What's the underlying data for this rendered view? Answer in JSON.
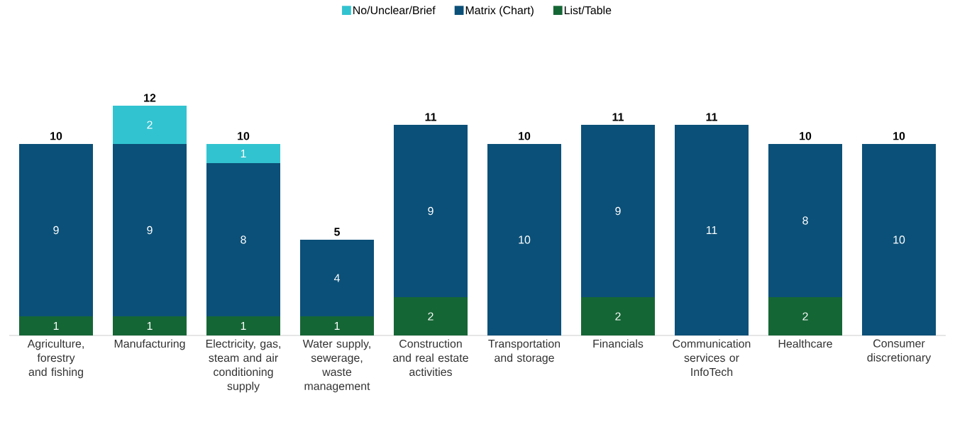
{
  "chart_data": {
    "type": "bar",
    "stacked": true,
    "legend": "top",
    "data_labels": true,
    "categories": [
      "Agriculture, forestry and fishing",
      "Manufacturing",
      "Electricity, gas, steam and air conditioning supply",
      "Water supply, sewerage, waste management",
      "Construction and real estate activities",
      "Transportation and storage",
      "Financials",
      "Communication services or InfoTech",
      "Healthcare",
      "Consumer discretionary"
    ],
    "series": [
      {
        "name": "List/Table",
        "color": "#156635",
        "values": [
          1,
          1,
          1,
          1,
          2,
          null,
          2,
          null,
          2,
          null
        ]
      },
      {
        "name": "Matrix (Chart)",
        "color": "#0b5078",
        "values": [
          9,
          9,
          8,
          4,
          9,
          10,
          9,
          11,
          8,
          10
        ]
      },
      {
        "name": "No/Unclear/Brief",
        "color": "#31c3d0",
        "values": [
          null,
          2,
          1,
          null,
          null,
          null,
          null,
          null,
          null,
          null
        ]
      }
    ],
    "totals": [
      "10",
      "12",
      "10",
      "5",
      "11",
      "10",
      "11",
      "11",
      "10",
      "10"
    ]
  }
}
